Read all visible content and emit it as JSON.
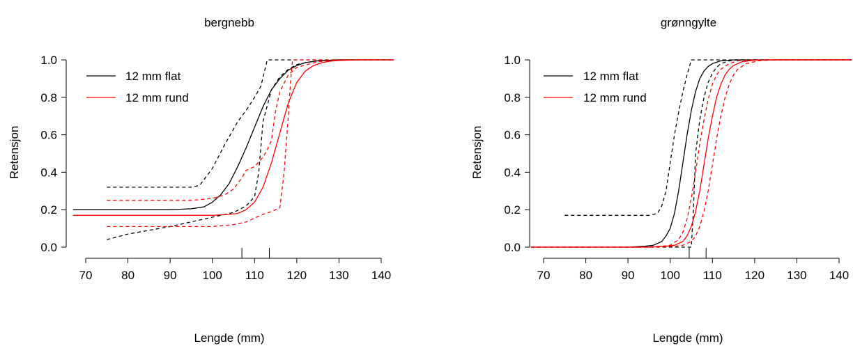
{
  "chart_data": [
    {
      "type": "line",
      "title": "bergnebb",
      "xlabel": "Lengde (mm)",
      "ylabel": "Retensjon",
      "xlim": [
        70,
        140
      ],
      "ylim": [
        0,
        1
      ],
      "xticks": [
        "70",
        "80",
        "90",
        "100",
        "110",
        "120",
        "130",
        "140"
      ],
      "yticks": [
        "0.0",
        "0.2",
        "0.4",
        "0.6",
        "0.8",
        "1.0"
      ],
      "legend": {
        "position": "top-left",
        "entries": [
          {
            "label": "12 mm flat",
            "color": "#000000"
          },
          {
            "label": "12 mm rund",
            "color": "#ff0000"
          }
        ]
      },
      "rug": [
        107,
        113.5
      ],
      "series": [
        {
          "name": "12 mm flat",
          "color": "#000000",
          "style": "solid",
          "x": [
            67,
            80,
            90,
            95,
            98,
            100,
            102,
            104,
            106,
            108,
            110,
            112,
            114,
            116,
            118,
            120,
            122,
            125,
            130,
            135,
            143
          ],
          "y": [
            0.2,
            0.2,
            0.2,
            0.205,
            0.215,
            0.24,
            0.28,
            0.34,
            0.43,
            0.53,
            0.64,
            0.75,
            0.84,
            0.9,
            0.945,
            0.97,
            0.985,
            0.995,
            1.0,
            1.0,
            1.0
          ]
        },
        {
          "color": "#000000",
          "style": "dashed",
          "x": [
            75,
            85,
            90,
            95,
            97,
            100,
            103,
            106,
            108,
            110,
            111.5,
            113,
            143
          ],
          "y": [
            0.32,
            0.32,
            0.32,
            0.32,
            0.33,
            0.42,
            0.55,
            0.67,
            0.73,
            0.8,
            0.86,
            1.0,
            1.0
          ]
        },
        {
          "color": "#000000",
          "style": "dashed",
          "x": [
            75,
            80,
            85,
            90,
            95,
            100,
            105,
            108,
            110,
            111,
            112,
            114,
            116,
            118,
            120,
            122,
            125,
            130,
            143
          ],
          "y": [
            0.04,
            0.07,
            0.09,
            0.11,
            0.135,
            0.16,
            0.185,
            0.22,
            0.27,
            0.4,
            0.67,
            0.84,
            0.91,
            0.95,
            0.975,
            0.985,
            0.995,
            1.0,
            1.0
          ]
        },
        {
          "name": "12 mm rund",
          "color": "#ff0000",
          "style": "solid",
          "x": [
            67,
            90,
            100,
            104,
            106,
            108,
            110,
            112,
            114,
            116,
            118,
            120,
            122,
            124,
            126,
            128,
            130,
            135,
            143
          ],
          "y": [
            0.17,
            0.17,
            0.17,
            0.175,
            0.18,
            0.2,
            0.24,
            0.32,
            0.45,
            0.61,
            0.77,
            0.88,
            0.94,
            0.97,
            0.985,
            0.993,
            0.997,
            1.0,
            1.0
          ]
        },
        {
          "color": "#ff0000",
          "style": "dashed",
          "x": [
            75,
            85,
            95,
            100,
            103,
            105,
            107,
            108,
            110,
            112,
            113,
            114,
            115,
            116,
            118,
            120,
            125,
            130,
            143
          ],
          "y": [
            0.25,
            0.25,
            0.25,
            0.26,
            0.28,
            0.31,
            0.37,
            0.41,
            0.43,
            0.48,
            0.52,
            0.57,
            0.73,
            0.83,
            0.92,
            0.96,
            0.99,
            1.0,
            1.0
          ]
        },
        {
          "color": "#ff0000",
          "style": "dashed",
          "x": [
            75,
            90,
            100,
            105,
            108,
            110,
            112,
            114,
            116,
            117,
            118,
            118.5,
            119,
            143
          ],
          "y": [
            0.11,
            0.11,
            0.11,
            0.12,
            0.135,
            0.155,
            0.175,
            0.19,
            0.21,
            0.4,
            0.7,
            0.88,
            1.0,
            1.0
          ]
        }
      ]
    },
    {
      "type": "line",
      "title": "grønngylte",
      "xlabel": "Lengde (mm)",
      "ylabel": "Retensjon",
      "xlim": [
        70,
        140
      ],
      "ylim": [
        0,
        1
      ],
      "xticks": [
        "70",
        "80",
        "90",
        "100",
        "110",
        "120",
        "130",
        "140"
      ],
      "yticks": [
        "0.0",
        "0.2",
        "0.4",
        "0.6",
        "0.8",
        "1.0"
      ],
      "legend": {
        "position": "top-left",
        "entries": [
          {
            "label": "12 mm flat",
            "color": "#000000"
          },
          {
            "label": "12 mm rund",
            "color": "#ff0000"
          }
        ]
      },
      "rug": [
        104.5,
        108.5
      ],
      "series": [
        {
          "name": "12 mm flat",
          "color": "#000000",
          "style": "solid",
          "x": [
            67,
            90,
            94,
            96,
            98,
            99,
            100,
            101,
            102,
            103,
            104,
            105,
            106,
            107,
            108,
            109,
            110,
            112,
            115,
            120,
            143
          ],
          "y": [
            0.0,
            0.0,
            0.005,
            0.01,
            0.03,
            0.06,
            0.1,
            0.18,
            0.3,
            0.45,
            0.6,
            0.73,
            0.83,
            0.9,
            0.94,
            0.965,
            0.98,
            0.995,
            1.0,
            1.0,
            1.0
          ]
        },
        {
          "color": "#000000",
          "style": "dashed",
          "x": [
            75,
            85,
            95,
            97,
            98,
            99,
            100,
            101,
            102,
            103,
            104,
            105,
            143
          ],
          "y": [
            0.17,
            0.17,
            0.17,
            0.18,
            0.22,
            0.3,
            0.45,
            0.6,
            0.72,
            0.83,
            0.92,
            1.0,
            1.0
          ]
        },
        {
          "color": "#000000",
          "style": "dashed",
          "x": [
            67,
            105,
            105.5,
            106,
            107,
            108,
            109,
            110,
            111,
            112,
            114,
            116,
            120,
            143
          ],
          "y": [
            0.0,
            0.0,
            0.2,
            0.5,
            0.68,
            0.8,
            0.88,
            0.93,
            0.96,
            0.98,
            0.995,
            1.0,
            1.0,
            1.0
          ]
        },
        {
          "name": "12 mm rund",
          "color": "#ff0000",
          "style": "solid",
          "x": [
            67,
            95,
            99,
            101,
            103,
            104,
            105,
            106,
            107,
            108,
            109,
            110,
            111,
            112,
            113,
            114,
            115,
            117,
            120,
            125,
            143
          ],
          "y": [
            0.0,
            0.0,
            0.005,
            0.01,
            0.03,
            0.06,
            0.11,
            0.19,
            0.3,
            0.44,
            0.58,
            0.7,
            0.8,
            0.87,
            0.92,
            0.95,
            0.97,
            0.99,
            0.998,
            1.0,
            1.0
          ]
        },
        {
          "color": "#ff0000",
          "style": "dashed",
          "x": [
            67,
            93,
            98,
            100,
            102,
            103,
            104,
            105,
            106,
            107,
            108,
            109,
            110,
            111,
            112,
            114,
            116,
            120,
            143
          ],
          "y": [
            0.0,
            0.0,
            0.005,
            0.01,
            0.04,
            0.08,
            0.15,
            0.26,
            0.4,
            0.55,
            0.68,
            0.79,
            0.87,
            0.92,
            0.95,
            0.98,
            0.995,
            1.0,
            1.0
          ]
        },
        {
          "color": "#ff0000",
          "style": "dashed",
          "x": [
            67,
            97,
            101,
            103,
            105,
            106,
            107,
            108,
            109,
            110,
            111,
            112,
            113,
            114,
            115,
            116,
            118,
            121,
            125,
            143
          ],
          "y": [
            0.0,
            0.0,
            0.005,
            0.01,
            0.03,
            0.06,
            0.11,
            0.19,
            0.3,
            0.44,
            0.58,
            0.7,
            0.8,
            0.87,
            0.92,
            0.95,
            0.98,
            0.995,
            1.0,
            1.0
          ]
        }
      ]
    }
  ]
}
